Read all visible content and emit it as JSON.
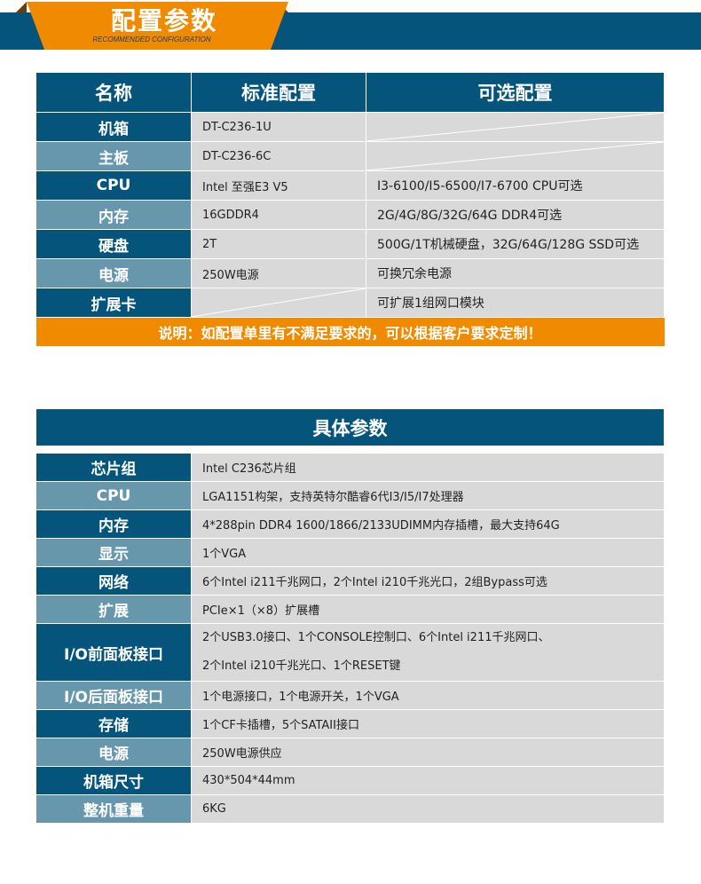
{
  "banner": {
    "title": "配置参数",
    "subtitle": "RECOMMENDED CONFIGURATION"
  },
  "config_table": {
    "headers": [
      "名称",
      "标准配置",
      "可选配置"
    ],
    "rows": [
      {
        "name": "机箱",
        "standard": "DT-C236-1U",
        "optional": ""
      },
      {
        "name": "主板",
        "standard": "DT-C236-6C",
        "optional": ""
      },
      {
        "name": "CPU",
        "standard": "Intel 至强E3 V5",
        "optional": "I3-6100/I5-6500/I7-6700 CPU可选"
      },
      {
        "name": "内存",
        "standard": "16GDDR4",
        "optional": "2G/4G/8G/32G/64G DDR4可选"
      },
      {
        "name": "硬盘",
        "standard": "2T",
        "optional": "500G/1T机械硬盘，32G/64G/128G SSD可选"
      },
      {
        "name": "电源",
        "standard": "250W电源",
        "optional": "可换冗余电源"
      },
      {
        "name": "扩展卡",
        "standard": "",
        "optional": "可扩展1组网口模块"
      }
    ],
    "note": "说明：如配置单里有不满足要求的，可以根据客户要求定制！"
  },
  "spec_table": {
    "title": "具体参数",
    "rows": [
      {
        "name": "芯片组",
        "value": "Intel C236芯片组"
      },
      {
        "name": "CPU",
        "value": "LGA1151构架，支持英特尔酷睿6代I3/I5/I7处理器"
      },
      {
        "name": "内存",
        "value": "4*288pin DDR4 1600/1866/2133UDIMM内存插槽，最大支持64G"
      },
      {
        "name": "显示",
        "value": "1个VGA"
      },
      {
        "name": "网络",
        "value": "6个Intel i211千兆网口，2个Intel i210千兆光口，2组Bypass可选"
      },
      {
        "name": "扩展",
        "value": "PCIe×1（×8）扩展槽"
      },
      {
        "name": "I/O前面板接口",
        "value": "2个USB3.0接口、1个CONSOLE控制口、6个Intel i211千兆网口、",
        "value2": "2个Intel i210千兆光口、1个RESET键"
      },
      {
        "name": "I/O后面板接口",
        "value": "1个电源接口，1个电源开关，1个VGA"
      },
      {
        "name": "存储",
        "value": "1个CF卡插槽，5个SATAII接口"
      },
      {
        "name": "电源",
        "value": "250W电源供应"
      },
      {
        "name": "机箱尺寸",
        "value": "430*504*44mm"
      },
      {
        "name": "整机重量",
        "value": "6KG"
      }
    ]
  },
  "colors": {
    "dark_blue": "#04547c",
    "steel_blue": "#6797ad",
    "orange": "#f08a00",
    "cell_gray": "#d9d9d9"
  }
}
